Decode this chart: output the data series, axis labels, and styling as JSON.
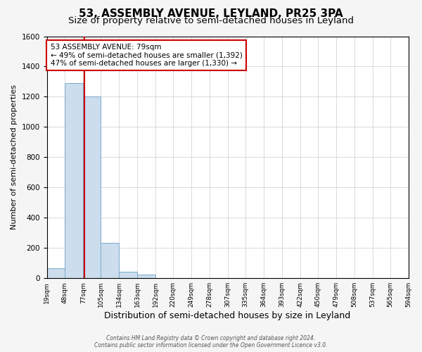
{
  "title": "53, ASSEMBLY AVENUE, LEYLAND, PR25 3PA",
  "subtitle": "Size of property relative to semi-detached houses in Leyland",
  "xlabel": "Distribution of semi-detached houses by size in Leyland",
  "ylabel": "Number of semi-detached properties",
  "bin_edges": [
    19,
    48,
    77,
    105,
    134,
    163,
    192,
    220,
    249,
    278,
    307,
    335,
    364,
    393,
    422,
    450,
    479,
    508,
    537,
    565,
    594
  ],
  "bin_counts": [
    65,
    1290,
    1200,
    235,
    45,
    25,
    0,
    0,
    0,
    0,
    0,
    0,
    0,
    0,
    0,
    0,
    0,
    0,
    0,
    0
  ],
  "bar_color": "#ccdded",
  "bar_edge_color": "#7aaac8",
  "property_size": 79,
  "vline_color": "#cc0000",
  "annotation_text_line1": "53 ASSEMBLY AVENUE: 79sqm",
  "annotation_text_line2": "← 49% of semi-detached houses are smaller (1,392)",
  "annotation_text_line3": "47% of semi-detached houses are larger (1,330) →",
  "annotation_box_color": "#ffffff",
  "annotation_box_edge_color": "#cc0000",
  "ylim": [
    0,
    1600
  ],
  "yticks": [
    0,
    200,
    400,
    600,
    800,
    1000,
    1200,
    1400,
    1600
  ],
  "tick_labels": [
    "19sqm",
    "48sqm",
    "77sqm",
    "105sqm",
    "134sqm",
    "163sqm",
    "192sqm",
    "220sqm",
    "249sqm",
    "278sqm",
    "307sqm",
    "335sqm",
    "364sqm",
    "393sqm",
    "422sqm",
    "450sqm",
    "479sqm",
    "508sqm",
    "537sqm",
    "565sqm",
    "594sqm"
  ],
  "footer_line1": "Contains HM Land Registry data © Crown copyright and database right 2024.",
  "footer_line2": "Contains public sector information licensed under the Open Government Licence v3.0.",
  "background_color": "#f5f5f5",
  "plot_bg_color": "#ffffff",
  "title_fontsize": 11,
  "subtitle_fontsize": 9.5,
  "grid_color": "#cccccc"
}
